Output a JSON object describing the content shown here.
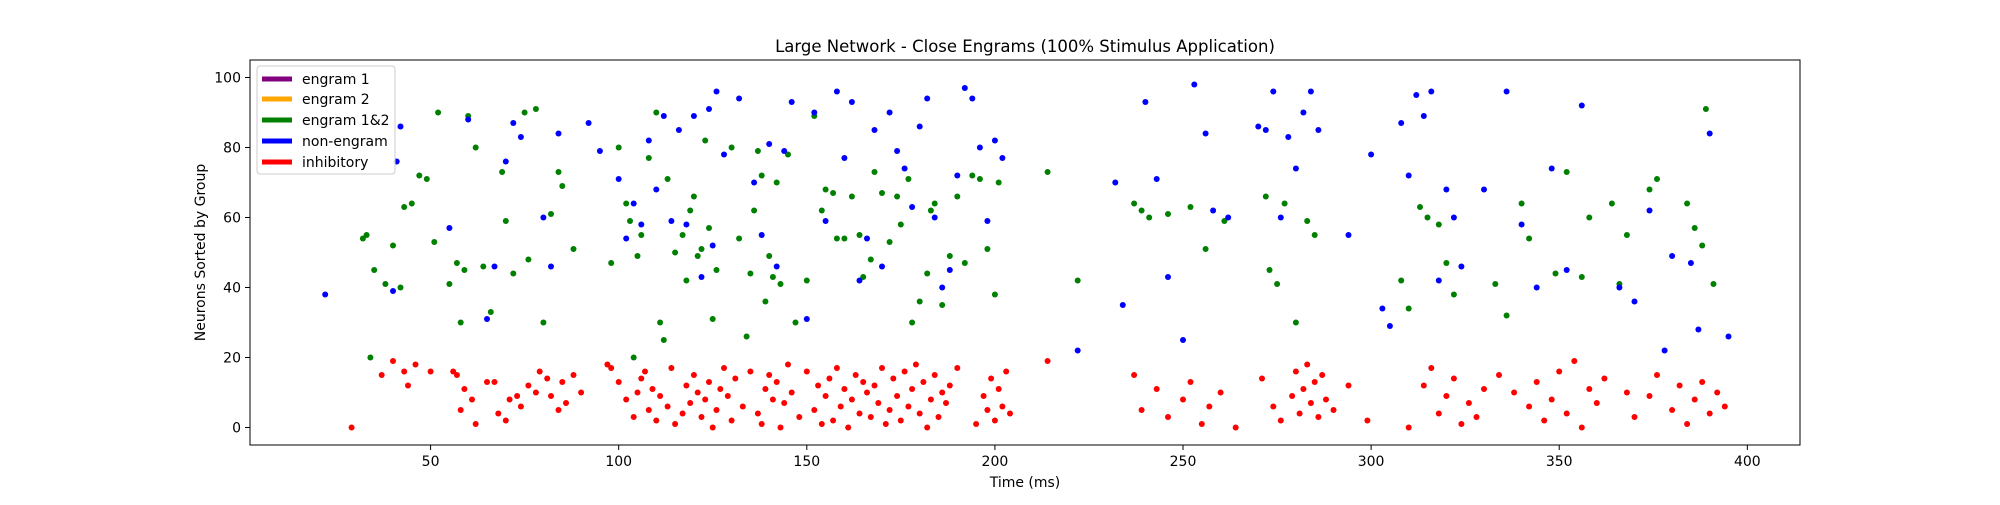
{
  "chart_data": {
    "type": "scatter",
    "title": "Large Network - Close Engrams (100% Stimulus Application)",
    "xlabel": "Time (ms)",
    "ylabel": "Neurons Sorted by Group",
    "xlim": [
      2,
      414
    ],
    "ylim": [
      -5,
      105
    ],
    "xticks": [
      "50",
      "100",
      "150",
      "200",
      "250",
      "300",
      "350",
      "400"
    ],
    "yticks": [
      "0",
      "20",
      "40",
      "60",
      "80",
      "100"
    ],
    "grid": false,
    "legend_position": "top-left",
    "legend": [
      {
        "label": "engram 1",
        "color": "#800080"
      },
      {
        "label": "engram 2",
        "color": "#ffa500"
      },
      {
        "label": "engram 1&2",
        "color": "#008000"
      },
      {
        "label": "non-engram",
        "color": "#0000ff"
      },
      {
        "label": "inhibitory",
        "color": "#ff0000"
      }
    ],
    "series": [
      {
        "name": "engram 1&2",
        "color": "#008000",
        "x": [
          32,
          33,
          34,
          35,
          38,
          40,
          42,
          43,
          45,
          47,
          49,
          51,
          52,
          55,
          57,
          58,
          59,
          60,
          62,
          64,
          66,
          69,
          70,
          72,
          75,
          76,
          78,
          80,
          82,
          84,
          85,
          88,
          98,
          100,
          102,
          103,
          104,
          105,
          106,
          108,
          110,
          111,
          112,
          113,
          115,
          117,
          118,
          119,
          120,
          121,
          122,
          123,
          124,
          125,
          126,
          130,
          132,
          134,
          135,
          136,
          137,
          138,
          139,
          140,
          141,
          142,
          143,
          145,
          147,
          150,
          152,
          154,
          155,
          157,
          158,
          160,
          162,
          164,
          165,
          167,
          168,
          170,
          172,
          174,
          175,
          177,
          178,
          180,
          182,
          183,
          184,
          186,
          188,
          190,
          192,
          194,
          196,
          198,
          200,
          201,
          214,
          222,
          237,
          239,
          241,
          246,
          252,
          256,
          261,
          272,
          273,
          275,
          277,
          280,
          283,
          285,
          308,
          310,
          313,
          315,
          318,
          320,
          322,
          333,
          336,
          340,
          342,
          349,
          352,
          356,
          358,
          364,
          366,
          368,
          374,
          376,
          384,
          386,
          388,
          389,
          391
        ],
        "y": [
          54,
          55,
          20,
          45,
          41,
          52,
          40,
          63,
          64,
          72,
          71,
          53,
          90,
          41,
          47,
          30,
          45,
          89,
          80,
          46,
          33,
          73,
          59,
          44,
          90,
          48,
          91,
          30,
          61,
          73,
          69,
          51,
          47,
          80,
          64,
          59,
          20,
          49,
          55,
          77,
          90,
          30,
          25,
          71,
          50,
          55,
          42,
          62,
          66,
          49,
          51,
          82,
          57,
          31,
          45,
          80,
          54,
          26,
          44,
          62,
          79,
          72,
          36,
          49,
          43,
          70,
          41,
          78,
          30,
          42,
          89,
          62,
          68,
          67,
          54,
          54,
          66,
          55,
          43,
          48,
          73,
          67,
          53,
          66,
          58,
          71,
          30,
          36,
          44,
          62,
          64,
          35,
          49,
          66,
          47,
          72,
          71,
          51,
          38,
          70,
          73,
          42,
          64,
          62,
          60,
          61,
          63,
          51,
          59,
          66,
          45,
          41,
          64,
          30,
          59,
          55,
          42,
          34,
          63,
          60,
          58,
          47,
          38,
          41,
          32,
          64,
          54,
          44,
          73,
          43,
          60,
          64,
          41,
          55,
          68,
          71,
          64,
          57,
          52,
          91,
          41
        ]
      },
      {
        "name": "non-engram",
        "color": "#0000ff",
        "x": [
          22,
          40,
          41,
          42,
          55,
          60,
          65,
          67,
          70,
          72,
          74,
          80,
          82,
          84,
          92,
          95,
          100,
          102,
          104,
          106,
          108,
          110,
          112,
          114,
          116,
          118,
          120,
          122,
          124,
          125,
          126,
          128,
          132,
          136,
          138,
          140,
          142,
          144,
          146,
          150,
          152,
          155,
          158,
          160,
          162,
          164,
          166,
          168,
          170,
          172,
          174,
          176,
          178,
          180,
          182,
          184,
          186,
          188,
          190,
          192,
          194,
          196,
          198,
          200,
          202,
          222,
          232,
          234,
          240,
          243,
          246,
          250,
          253,
          256,
          258,
          262,
          270,
          272,
          274,
          276,
          278,
          280,
          282,
          284,
          286,
          294,
          300,
          303,
          305,
          308,
          310,
          312,
          314,
          316,
          318,
          320,
          322,
          324,
          330,
          336,
          340,
          344,
          348,
          352,
          356,
          366,
          370,
          374,
          378,
          380,
          385,
          387,
          390,
          395
        ],
        "y": [
          38,
          39,
          76,
          86,
          57,
          88,
          31,
          46,
          76,
          87,
          83,
          60,
          46,
          84,
          87,
          79,
          71,
          54,
          64,
          58,
          82,
          68,
          89,
          59,
          85,
          58,
          89,
          43,
          91,
          52,
          96,
          78,
          94,
          70,
          55,
          81,
          46,
          79,
          93,
          31,
          90,
          59,
          96,
          77,
          93,
          42,
          54,
          85,
          46,
          90,
          79,
          74,
          63,
          86,
          94,
          60,
          40,
          45,
          72,
          97,
          94,
          80,
          59,
          82,
          77,
          22,
          70,
          35,
          93,
          71,
          43,
          25,
          98,
          84,
          62,
          60,
          86,
          85,
          96,
          60,
          83,
          74,
          90,
          96,
          85,
          55,
          78,
          34,
          29,
          87,
          72,
          95,
          89,
          96,
          42,
          68,
          60,
          46,
          68,
          96,
          58,
          40,
          74,
          45,
          92,
          40,
          36,
          62,
          22,
          49,
          47,
          28,
          84,
          26
        ]
      },
      {
        "name": "inhibitory",
        "color": "#ff0000",
        "x": [
          29,
          37,
          40,
          43,
          44,
          46,
          50,
          56,
          57,
          58,
          59,
          61,
          62,
          65,
          67,
          68,
          70,
          71,
          73,
          74,
          76,
          78,
          79,
          81,
          82,
          84,
          85,
          86,
          88,
          90,
          97,
          98,
          100,
          102,
          104,
          105,
          106,
          107,
          108,
          109,
          110,
          111,
          113,
          114,
          115,
          117,
          118,
          119,
          120,
          121,
          122,
          123,
          124,
          125,
          126,
          127,
          128,
          129,
          130,
          131,
          133,
          135,
          137,
          138,
          139,
          140,
          141,
          142,
          143,
          144,
          145,
          146,
          148,
          150,
          152,
          153,
          154,
          155,
          156,
          157,
          158,
          159,
          160,
          161,
          162,
          163,
          164,
          165,
          166,
          167,
          168,
          169,
          170,
          171,
          172,
          173,
          174,
          175,
          176,
          177,
          178,
          179,
          180,
          181,
          182,
          183,
          184,
          185,
          186,
          187,
          188,
          190,
          195,
          197,
          198,
          199,
          200,
          201,
          202,
          203,
          204,
          214,
          237,
          239,
          243,
          246,
          250,
          252,
          255,
          257,
          260,
          264,
          271,
          274,
          276,
          279,
          280,
          281,
          282,
          283,
          284,
          285,
          286,
          287,
          288,
          290,
          294,
          299,
          310,
          314,
          316,
          318,
          320,
          322,
          324,
          326,
          328,
          330,
          334,
          338,
          342,
          344,
          346,
          348,
          350,
          352,
          354,
          356,
          358,
          360,
          362,
          368,
          370,
          374,
          376,
          380,
          382,
          384,
          386,
          388,
          390,
          392,
          394
        ],
        "y": [
          0,
          15,
          19,
          16,
          12,
          18,
          16,
          16,
          15,
          5,
          11,
          8,
          1,
          13,
          13,
          4,
          2,
          8,
          9,
          6,
          12,
          10,
          16,
          14,
          9,
          5,
          13,
          7,
          15,
          10,
          18,
          17,
          13,
          8,
          3,
          10,
          14,
          16,
          5,
          11,
          2,
          9,
          6,
          17,
          1,
          4,
          12,
          7,
          15,
          10,
          3,
          8,
          13,
          0,
          5,
          11,
          17,
          9,
          2,
          14,
          6,
          16,
          4,
          1,
          11,
          15,
          8,
          13,
          0,
          7,
          18,
          10,
          3,
          16,
          5,
          12,
          1,
          9,
          14,
          2,
          17,
          6,
          11,
          0,
          8,
          15,
          4,
          13,
          10,
          3,
          12,
          7,
          17,
          1,
          5,
          14,
          9,
          2,
          16,
          6,
          11,
          18,
          4,
          13,
          0,
          8,
          15,
          3,
          10,
          7,
          12,
          17,
          1,
          9,
          5,
          14,
          2,
          11,
          6,
          16,
          4,
          19,
          15,
          5,
          11,
          3,
          8,
          13,
          1,
          6,
          10,
          0,
          14,
          6,
          2,
          9,
          16,
          4,
          11,
          18,
          7,
          13,
          3,
          15,
          8,
          5,
          12,
          2,
          0,
          12,
          17,
          4,
          9,
          14,
          1,
          7,
          3,
          11,
          15,
          10,
          6,
          13,
          2,
          8,
          16,
          4,
          19,
          0,
          11,
          7,
          14,
          10,
          3,
          9,
          15,
          5,
          12,
          1,
          8,
          13,
          4,
          10,
          6
        ]
      }
    ]
  }
}
